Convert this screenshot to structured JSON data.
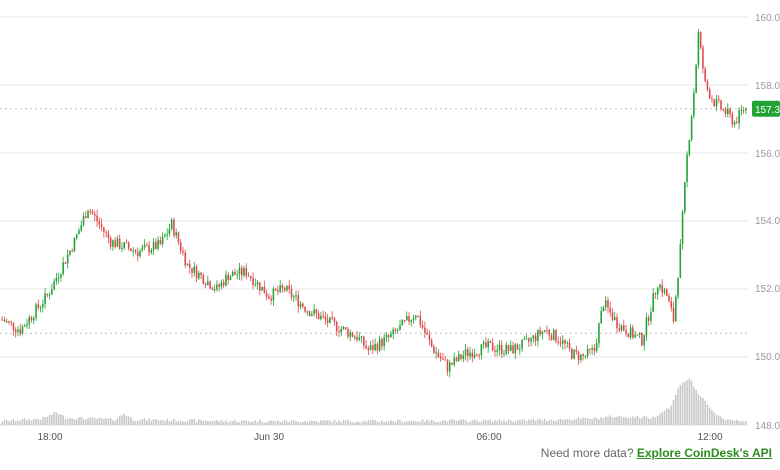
{
  "chart_data": {
    "type": "candlestick",
    "y_axis": {
      "ticks": [
        "160.0",
        "158.0",
        "156.0",
        "154.0",
        "152.0",
        "150.0",
        "148.0"
      ],
      "tick_values": [
        160,
        158,
        156,
        154,
        152,
        150,
        148
      ],
      "range": [
        148,
        160.4
      ],
      "position": "right"
    },
    "x_axis": {
      "ticks": [
        "18:00",
        "Jun 30",
        "06:00",
        "12:00"
      ]
    },
    "reference_lines": [
      157.3,
      150.7
    ],
    "last_price": {
      "label": "157.3",
      "value": 157.3,
      "color": "#21a336"
    },
    "up_color": "#21a336",
    "down_color": "#e0484b",
    "volume_color": "#c8c8c8",
    "key_path": [
      [
        0,
        151.1
      ],
      [
        8,
        150.8
      ],
      [
        20,
        151.8
      ],
      [
        32,
        153.4
      ],
      [
        38,
        154.4
      ],
      [
        48,
        153.4
      ],
      [
        60,
        153.1
      ],
      [
        70,
        153.3
      ],
      [
        75,
        153.9
      ],
      [
        82,
        152.7
      ],
      [
        95,
        152.0
      ],
      [
        100,
        152.4
      ],
      [
        108,
        152.5
      ],
      [
        118,
        151.8
      ],
      [
        125,
        152.0
      ],
      [
        135,
        151.4
      ],
      [
        145,
        151.0
      ],
      [
        157,
        150.6
      ],
      [
        162,
        150.2
      ],
      [
        172,
        150.6
      ],
      [
        183,
        151.3
      ],
      [
        190,
        150.3
      ],
      [
        197,
        149.7
      ],
      [
        205,
        150.1
      ],
      [
        215,
        150.3
      ],
      [
        225,
        150.2
      ],
      [
        232,
        150.4
      ],
      [
        240,
        150.8
      ],
      [
        247,
        150.5
      ],
      [
        252,
        150.1
      ],
      [
        257,
        150.0
      ],
      [
        262,
        150.2
      ],
      [
        266,
        151.6
      ],
      [
        272,
        151.0
      ],
      [
        278,
        150.7
      ],
      [
        283,
        150.5
      ],
      [
        290,
        152.2
      ],
      [
        294,
        151.8
      ],
      [
        297,
        151.1
      ],
      [
        300,
        153.2
      ],
      [
        303,
        155.9
      ],
      [
        306,
        157.8
      ],
      [
        308,
        159.5
      ],
      [
        311,
        158.0
      ],
      [
        315,
        157.5
      ],
      [
        320,
        157.2
      ],
      [
        324,
        156.9
      ],
      [
        328,
        157.3
      ]
    ],
    "volume_profile": [
      [
        0,
        0.05
      ],
      [
        18,
        0.1
      ],
      [
        24,
        0.22
      ],
      [
        28,
        0.12
      ],
      [
        50,
        0.08
      ],
      [
        54,
        0.2
      ],
      [
        58,
        0.08
      ],
      [
        100,
        0.05
      ],
      [
        160,
        0.05
      ],
      [
        230,
        0.06
      ],
      [
        262,
        0.1
      ],
      [
        270,
        0.14
      ],
      [
        288,
        0.12
      ],
      [
        296,
        0.35
      ],
      [
        300,
        0.8
      ],
      [
        304,
        0.9
      ],
      [
        308,
        0.6
      ],
      [
        314,
        0.25
      ],
      [
        320,
        0.08
      ],
      [
        328,
        0.06
      ]
    ],
    "candle_count": 330
  },
  "footer": {
    "prefix": "Need more data?",
    "link": "Explore CoinDesk's API"
  }
}
